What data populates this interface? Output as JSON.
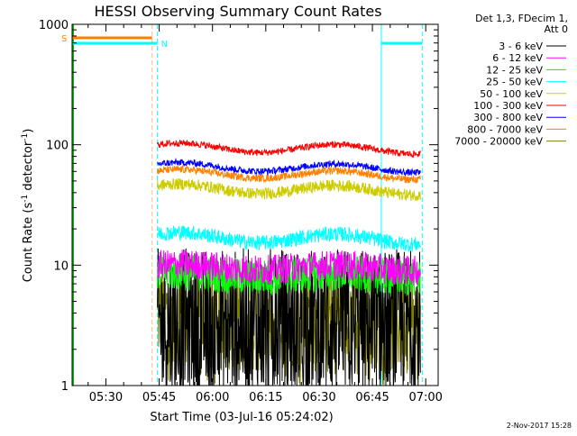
{
  "chart_data": {
    "type": "line",
    "title": "HESSI Observing Summary Count Rates",
    "xlabel": "Start Time (03-Jul-16 05:24:02)",
    "ylabel_main": "Count Rate (s",
    "ylabel_sup1": "-1",
    "ylabel_mid": " detector",
    "ylabel_sup2": "-1",
    "ylabel_end": ")",
    "yscale": "log",
    "ylim": [
      1,
      1000
    ],
    "xlim_minutes": [
      320.5,
      423.5
    ],
    "x_ticks": [
      {
        "label": "05:30",
        "minutes": 330
      },
      {
        "label": "05:45",
        "minutes": 345
      },
      {
        "label": "06:00",
        "minutes": 360
      },
      {
        "label": "06:15",
        "minutes": 375
      },
      {
        "label": "06:30",
        "minutes": 390
      },
      {
        "label": "06:45",
        "minutes": 405
      },
      {
        "label": "07:00",
        "minutes": 420
      }
    ],
    "y_ticks": [
      {
        "label": "1",
        "value": 1
      },
      {
        "label": "10",
        "value": 10
      },
      {
        "label": "100",
        "value": 100
      },
      {
        "label": "1000",
        "value": 1000
      }
    ],
    "legend_header": [
      "Det 1,3, FDecim 1,",
      "Att 0"
    ],
    "series": [
      {
        "name": "3 - 6 keV",
        "color": "#000000",
        "base": 3.3,
        "amp": 0.0,
        "noise": 0.45,
        "drops": true
      },
      {
        "name": "6 - 12 keV",
        "color": "#ff00ff",
        "base": 9.5,
        "amp": 0.07,
        "noise": 0.09,
        "drops": false
      },
      {
        "name": "12 - 25 keV",
        "color": "#00ff00",
        "base": 8.2,
        "amp": 0.06,
        "noise": 0.11,
        "drops": false
      },
      {
        "name": "25 - 50 keV",
        "color": "#00ffff",
        "base": 16.5,
        "amp": 0.13,
        "noise": 0.045,
        "drops": false
      },
      {
        "name": "50 - 100 keV",
        "color": "#cccc00",
        "base": 42,
        "amp": 0.12,
        "noise": 0.035,
        "drops": false
      },
      {
        "name": "100 - 300 keV",
        "color": "#ff0000",
        "base": 92,
        "amp": 0.12,
        "noise": 0.02,
        "drops": false
      },
      {
        "name": "300 - 800 keV",
        "color": "#0000ff",
        "base": 64,
        "amp": 0.11,
        "noise": 0.02,
        "drops": false
      },
      {
        "name": "800 - 7000 keV",
        "color": "#ff8000",
        "base": 56,
        "amp": 0.11,
        "noise": 0.022,
        "drops": false
      },
      {
        "name": "7000 - 20000 keV",
        "color": "#808000",
        "base": 3.6,
        "amp": 0.12,
        "noise": 0.3,
        "drops": true
      }
    ],
    "data_window_minutes": [
      344.5,
      418.5
    ],
    "markers": {
      "saa_label": "S",
      "saa_color": "#ff8000",
      "night_label": "N",
      "night_color": "#00ffff",
      "saa_end_minutes": 343.0,
      "night_end_minutes": 344.5,
      "night_start_minutes": 407.5,
      "night_final_minutes": 419.0,
      "green_line_minutes": 320.7
    }
  },
  "footer": {
    "date": "2-Nov-2017 15:28"
  }
}
